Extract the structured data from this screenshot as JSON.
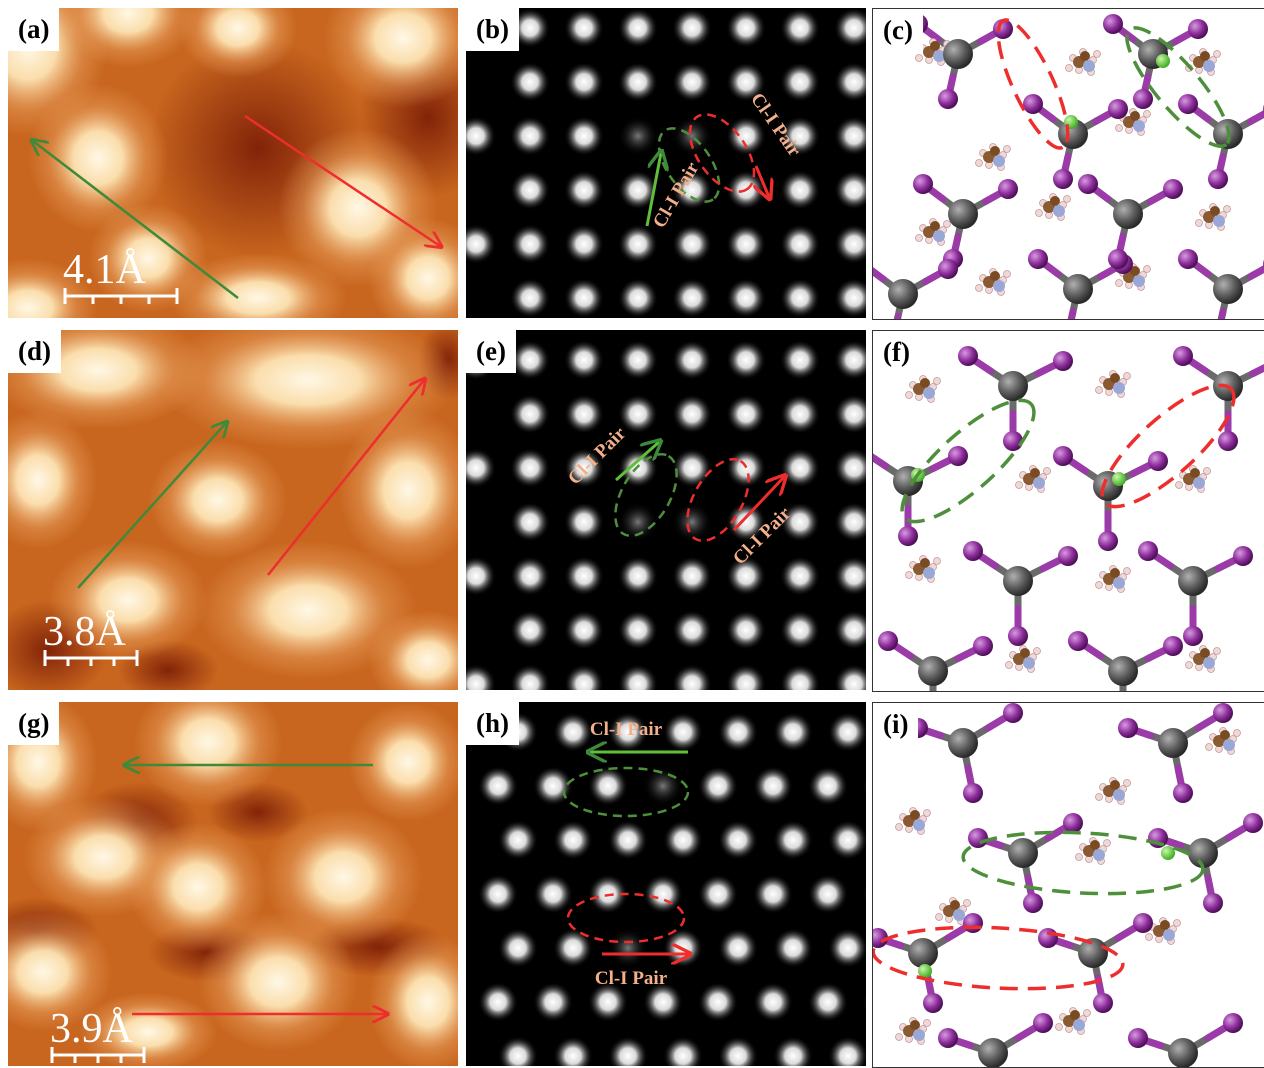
{
  "panels": {
    "a": {
      "label": "(a)",
      "scale": "4.1Å"
    },
    "b": {
      "label": "(b)",
      "pair_green": "Cl-I Pair",
      "pair_red": "Cl-I Pair"
    },
    "c": {
      "label": "(c)"
    },
    "d": {
      "label": "(d)",
      "scale": "3.8Å"
    },
    "e": {
      "label": "(e)",
      "pair_green": "Cl-I Pair",
      "pair_red": "Cl-I Pair"
    },
    "f": {
      "label": "(f)"
    },
    "g": {
      "label": "(g)",
      "scale": "3.9Å"
    },
    "h": {
      "label": "(h)",
      "pair_green": "Cl-I Pair",
      "pair_red": "Cl-I Pair"
    },
    "i": {
      "label": "(i)"
    }
  },
  "colors": {
    "green_arrow": "#3f8a3a",
    "red_arrow": "#ee2d2d",
    "pair_text": "#f3b08a",
    "iodine": "#8e2e9c",
    "lead": "#5a5a5a",
    "chlorine": "#5fd03a"
  }
}
